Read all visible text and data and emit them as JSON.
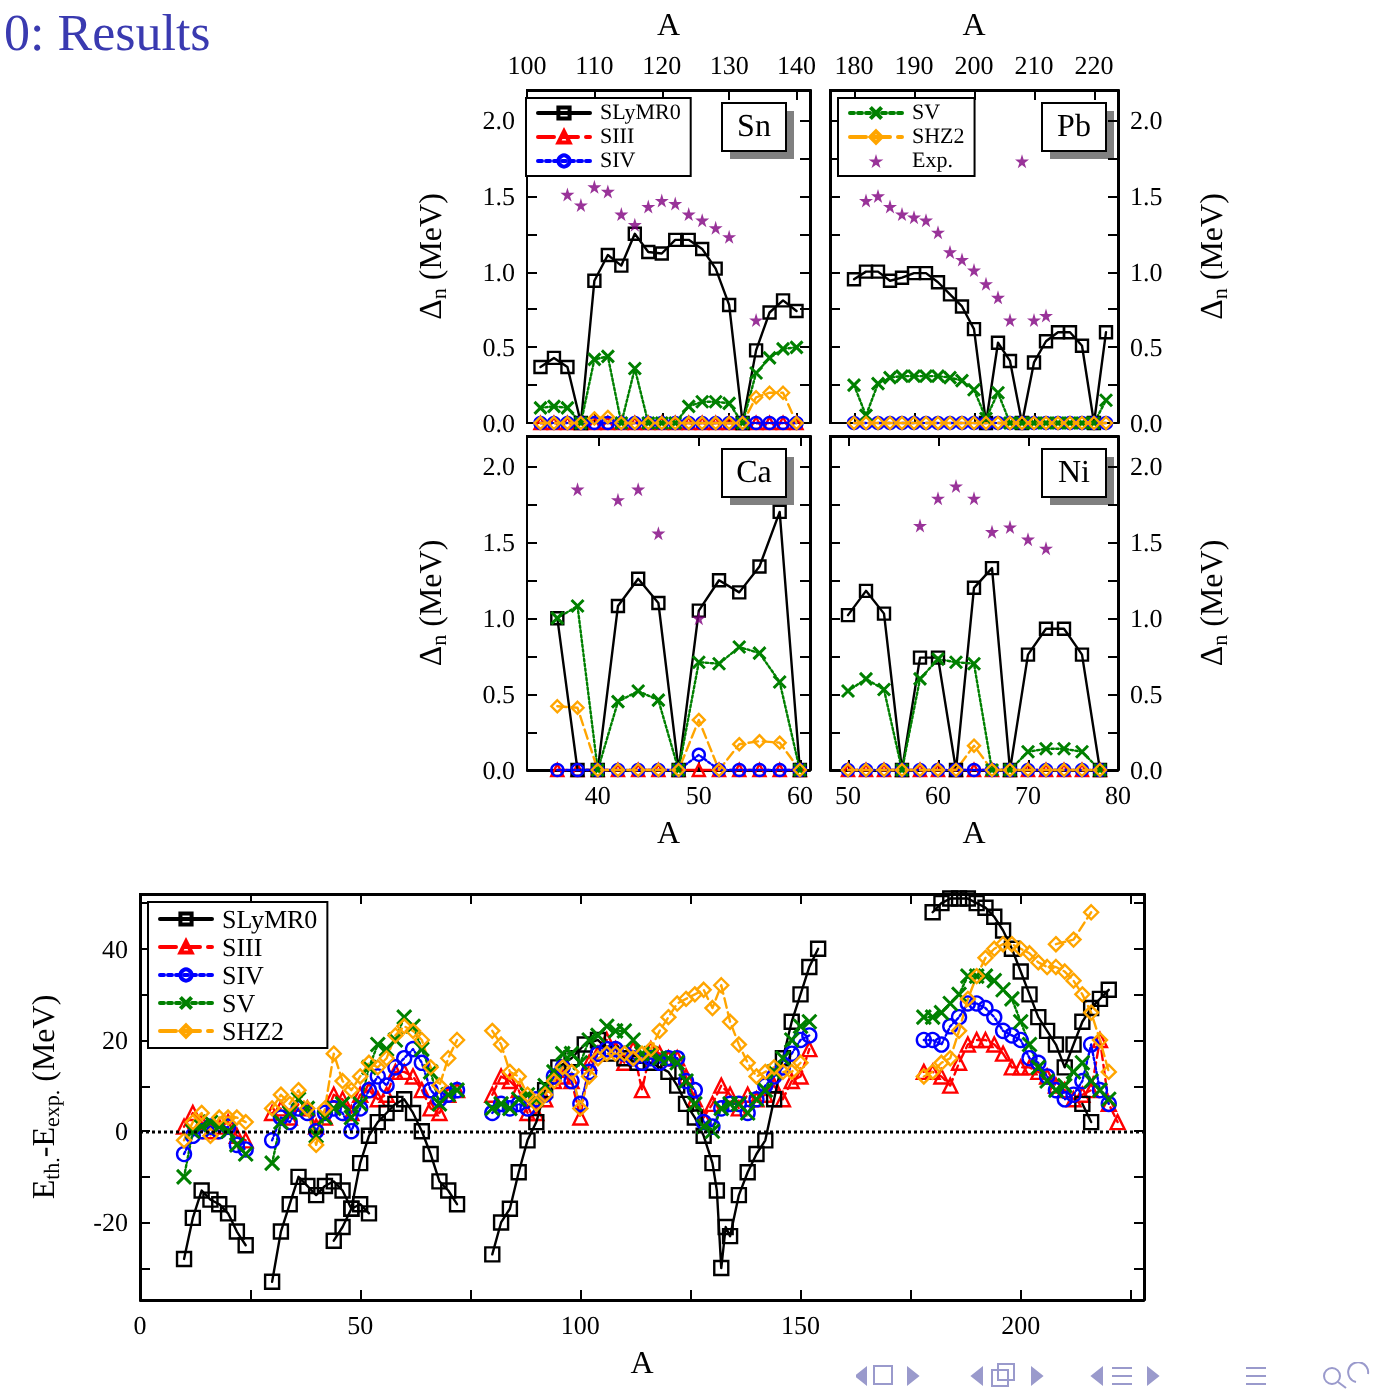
{
  "chart_data": [
    {
      "type": "line",
      "title": "0: Results",
      "xlabel": "A",
      "xlim": [
        100,
        142
      ],
      "xticks": [
        100,
        110,
        120,
        130,
        140
      ],
      "ylabel": "Δ$_{n}$ (MeV)",
      "ylim": [
        0,
        2.2
      ],
      "yticks": [
        {
          "value": 0,
          "label": "0.0"
        },
        {
          "value": 0.25,
          "label": null
        },
        0.5,
        {
          "value": 0.75,
          "label": null
        },
        {
          "value": 1,
          "label": "1.0"
        },
        {
          "value": 1.25,
          "label": null
        },
        1.5,
        {
          "value": 1.75,
          "label": null
        },
        {
          "value": 2,
          "label": "2.0"
        }
      ],
      "legend": "top left",
      "annotations": [
        "Sn"
      ],
      "x": [
        102,
        104,
        106,
        108,
        110,
        112,
        114,
        116,
        118,
        120,
        122,
        124,
        126,
        128,
        130,
        132,
        134,
        136,
        138,
        140
      ],
      "series": [
        {
          "name": "SLyMR0",
          "color": "#000000",
          "marker": "square",
          "line_style": "solid",
          "values": [
            0.37,
            0.43,
            0.37,
            0,
            0.94,
            1.11,
            1.04,
            1.25,
            1.13,
            1.12,
            1.21,
            1.21,
            1.15,
            1.02,
            0.78,
            0,
            0.48,
            0.73,
            0.81,
            0.74
          ]
        },
        {
          "name": "SIII",
          "color": "#ff0000",
          "marker": "triangle",
          "line_style": "dashed",
          "values": [
            0,
            0,
            0,
            0,
            0,
            0,
            0,
            0,
            0,
            0,
            0,
            0,
            0,
            0,
            0,
            0,
            0,
            0,
            0,
            0
          ]
        },
        {
          "name": "SIV",
          "color": "#0000ff",
          "marker": "circle",
          "line_style": "dotted",
          "values": [
            0,
            0,
            0,
            0,
            0,
            0,
            0,
            0,
            0,
            0,
            0,
            0,
            0,
            0,
            0,
            0,
            0,
            0,
            0,
            0
          ]
        },
        {
          "color": "#008000",
          "marker": "cross",
          "line_style": "dotted",
          "values": [
            0.1,
            0.11,
            0.1,
            0,
            0.42,
            0.44,
            0,
            0.36,
            0,
            0,
            0,
            0.11,
            0.14,
            0.14,
            0.13,
            0,
            0.33,
            0.43,
            0.49,
            0.5
          ]
        },
        {
          "color": "#ffa500",
          "marker": "diamond",
          "line_style": "dashed",
          "values": [
            0,
            0,
            0,
            0,
            0.03,
            0.04,
            0,
            0,
            0,
            0,
            0,
            0,
            0,
            0,
            0,
            0,
            0.17,
            0.2,
            0.2,
            0
          ]
        },
        {
          "type": "scatter",
          "color": "#800080",
          "marker": "star",
          "x": [
            106,
            108,
            110,
            112,
            114,
            116,
            118,
            120,
            122,
            124,
            126,
            128,
            130,
            134
          ],
          "values": [
            1.51,
            1.44,
            1.56,
            1.53,
            1.38,
            1.31,
            1.43,
            1.47,
            1.45,
            1.38,
            1.34,
            1.29,
            1.23,
            0.68
          ]
        }
      ]
    },
    {
      "type": "line",
      "xlabel": "A",
      "xlim": [
        176,
        224
      ],
      "xticks": [
        180,
        190,
        200,
        210,
        220
      ],
      "ylabel": "Δ$_{n}$ (MeV)",
      "ylim": [
        0,
        2.2
      ],
      "yticks": [
        {
          "value": 0,
          "label": "0.0"
        },
        {
          "value": 0.25,
          "label": null
        },
        0.5,
        {
          "value": 0.75,
          "label": null
        },
        {
          "value": 1,
          "label": "1.0"
        },
        {
          "value": 1.25,
          "label": null
        },
        1.5,
        {
          "value": 1.75,
          "label": null
        },
        {
          "value": 2,
          "label": "2.0"
        }
      ],
      "legend": "top left",
      "annotations": [
        "Pb"
      ],
      "x": [
        180,
        182,
        184,
        186,
        188,
        190,
        192,
        194,
        196,
        198,
        200,
        202,
        204,
        206,
        208,
        210,
        212,
        214,
        216,
        218,
        220,
        222
      ],
      "series": [
        {
          "color": "#000000",
          "marker": "square",
          "line_style": "solid",
          "values": [
            0.95,
            1.0,
            1.0,
            0.94,
            0.96,
            0.99,
            0.99,
            0.93,
            0.85,
            0.77,
            0.62,
            0,
            0.53,
            0.41,
            0,
            0.4,
            0.54,
            0.6,
            0.6,
            0.51,
            0,
            0.6
          ]
        },
        {
          "color": "#ff0000",
          "marker": "triangle",
          "line_style": "dashed",
          "values": [
            null,
            null,
            null,
            null,
            null,
            null,
            null,
            null,
            null,
            null,
            null,
            null,
            null,
            null,
            null,
            null,
            null,
            null,
            null,
            null,
            null,
            null
          ]
        },
        {
          "color": "#0000ff",
          "marker": "circle",
          "line_style": "dotted",
          "values": [
            0,
            0,
            0,
            0,
            0,
            0,
            0,
            0,
            0,
            0,
            0,
            0,
            0,
            0,
            0,
            0,
            0,
            0,
            0,
            0,
            0,
            0
          ]
        },
        {
          "name": "SV",
          "color": "#008000",
          "marker": "cross",
          "line_style": "dotted",
          "values": [
            0.25,
            0.05,
            0.26,
            0.3,
            0.31,
            0.31,
            0.31,
            0.31,
            0.3,
            0.28,
            0.22,
            0.03,
            0.2,
            0,
            0,
            0,
            0,
            0,
            0,
            0,
            0,
            0.15
          ]
        },
        {
          "name": "SHZ2",
          "color": "#ffa500",
          "marker": "diamond",
          "line_style": "dashed",
          "values": [
            0,
            0,
            0,
            0,
            0,
            0,
            0,
            0,
            0,
            0,
            0,
            0,
            0,
            0,
            0,
            0,
            0,
            0,
            0,
            0,
            0,
            0
          ]
        },
        {
          "name": "Exp.",
          "type": "scatter",
          "color": "#800080",
          "marker": "star",
          "x": [
            182,
            184,
            186,
            188,
            190,
            192,
            194,
            196,
            198,
            200,
            202,
            204,
            206,
            208,
            210,
            212
          ],
          "values": [
            1.47,
            1.5,
            1.43,
            1.38,
            1.36,
            1.34,
            1.26,
            1.13,
            1.08,
            1.01,
            0.92,
            0.83,
            0.68,
            1.73,
            0.68,
            0.71
          ]
        }
      ]
    },
    {
      "type": "line",
      "xlabel": "A",
      "xlim": [
        33,
        61
      ],
      "xticks": [
        40,
        50,
        60
      ],
      "ylabel": "Δ$_{n}$ (MeV)",
      "ylim": [
        0,
        2.2
      ],
      "yticks": [
        {
          "value": 0,
          "label": "0.0"
        },
        {
          "value": 0.25,
          "label": null
        },
        0.5,
        {
          "value": 0.75,
          "label": null
        },
        {
          "value": 1,
          "label": "1.0"
        },
        {
          "value": 1.25,
          "label": null
        },
        1.5,
        {
          "value": 1.75,
          "label": null
        },
        {
          "value": 2,
          "label": "2.0"
        }
      ],
      "annotations": [
        "Ca"
      ],
      "x": [
        36,
        38,
        40,
        42,
        44,
        46,
        48,
        50,
        52,
        54,
        56,
        58,
        60
      ],
      "series": [
        {
          "color": "#000000",
          "marker": "square",
          "line_style": "solid",
          "values": [
            1.0,
            0,
            0,
            1.08,
            1.26,
            1.1,
            0,
            1.05,
            1.25,
            1.17,
            1.34,
            1.7,
            0
          ]
        },
        {
          "color": "#ff0000",
          "marker": "triangle",
          "line_style": "dashed",
          "values": [
            0,
            0,
            0,
            0,
            0,
            0,
            0,
            0,
            0,
            0,
            0,
            0,
            0
          ]
        },
        {
          "color": "#0000ff",
          "marker": "circle",
          "line_style": "dotted",
          "values": [
            0,
            0,
            0,
            0,
            0,
            0,
            0,
            0.1,
            0,
            0,
            0,
            0,
            0
          ]
        },
        {
          "color": "#008000",
          "marker": "cross",
          "line_style": "dotted",
          "values": [
            1.0,
            1.08,
            0,
            0.45,
            0.52,
            0.46,
            0,
            0.71,
            0.7,
            0.81,
            0.77,
            0.58,
            0
          ]
        },
        {
          "color": "#ffa500",
          "marker": "diamond",
          "line_style": "dashed",
          "values": [
            0.42,
            0.41,
            0,
            0,
            0,
            0,
            0,
            0.33,
            0,
            0.17,
            0.19,
            0.18,
            0
          ]
        },
        {
          "type": "scatter",
          "color": "#800080",
          "marker": "star",
          "x": [
            38,
            42,
            44,
            46,
            50
          ],
          "values": [
            1.85,
            1.78,
            1.85,
            1.56,
            1.0
          ]
        }
      ]
    },
    {
      "type": "line",
      "xlabel": "A",
      "xlim": [
        48,
        80
      ],
      "xticks": [
        50,
        60,
        70,
        80
      ],
      "ylabel": "Δ$_{n}$ (MeV)",
      "ylim": [
        0,
        2.2
      ],
      "yticks": [
        {
          "value": 0,
          "label": "0.0"
        },
        {
          "value": 0.25,
          "label": null
        },
        0.5,
        {
          "value": 0.75,
          "label": null
        },
        {
          "value": 1,
          "label": "1.0"
        },
        {
          "value": 1.25,
          "label": null
        },
        1.5,
        {
          "value": 1.75,
          "label": null
        },
        {
          "value": 2,
          "label": "2.0"
        }
      ],
      "annotations": [
        "Ni"
      ],
      "x": [
        50,
        52,
        54,
        56,
        58,
        60,
        62,
        64,
        66,
        68,
        70,
        72,
        74,
        76,
        78
      ],
      "series": [
        {
          "color": "#000000",
          "marker": "square",
          "line_style": "solid",
          "values": [
            1.02,
            1.18,
            1.03,
            0,
            0.74,
            0.74,
            0,
            1.2,
            1.33,
            0,
            0.76,
            0.93,
            0.93,
            0.76,
            0
          ]
        },
        {
          "color": "#ff0000",
          "marker": "triangle",
          "line_style": "dashed",
          "values": [
            0,
            0,
            0,
            0,
            0,
            0,
            0,
            0,
            0,
            0,
            0,
            0,
            0,
            0,
            0
          ]
        },
        {
          "color": "#0000ff",
          "marker": "circle",
          "line_style": "dotted",
          "values": [
            0,
            0,
            0,
            0,
            0,
            0,
            0,
            0,
            0,
            0,
            0,
            0,
            0,
            0,
            0
          ]
        },
        {
          "color": "#008000",
          "marker": "cross",
          "line_style": "dotted",
          "values": [
            0.52,
            0.6,
            0.53,
            0,
            0.6,
            0.73,
            0.71,
            0.7,
            0,
            0,
            0.12,
            0.14,
            0.14,
            0.12,
            0
          ]
        },
        {
          "color": "#ffa500",
          "marker": "diamond",
          "line_style": "dashed",
          "values": [
            0,
            0,
            0,
            0,
            0,
            0,
            0,
            0.16,
            0,
            0,
            0,
            0,
            0,
            0,
            0
          ]
        },
        {
          "type": "scatter",
          "color": "#800080",
          "marker": "star",
          "x": [
            58,
            60,
            62,
            64,
            66,
            68,
            70,
            72
          ],
          "values": [
            1.61,
            1.79,
            1.87,
            1.79,
            1.57,
            1.6,
            1.52,
            1.46
          ]
        }
      ]
    },
    {
      "type": "line",
      "xlabel": "A",
      "xlim": [
        0,
        228
      ],
      "xticks": [
        0,
        {
          "value": 25,
          "label": null
        },
        50,
        {
          "value": 75,
          "label": null
        },
        100,
        {
          "value": 125,
          "label": null
        },
        150,
        {
          "value": 175,
          "label": null
        },
        200,
        {
          "value": 225,
          "label": null
        }
      ],
      "ylabel": "E$_{th.}$-E$_{exp.}$ (MeV)",
      "ylim": [
        -37,
        52
      ],
      "yticks": [
        {
          "value": -30,
          "label": null
        },
        -20,
        {
          "value": -10,
          "label": null
        },
        0,
        {
          "value": 10,
          "label": null
        },
        20,
        {
          "value": 30,
          "label": null
        },
        40,
        {
          "value": 50,
          "label": null
        }
      ],
      "legend": "top left",
      "ref_lines": [
        {
          "axis": "y",
          "value": 0,
          "color": "#000000",
          "line_style": "dotted"
        }
      ],
      "series": [
        {
          "name": "SLyMR0",
          "color": "#000000",
          "marker": "square",
          "line_style": "solid",
          "x": [
            10,
            12,
            14,
            16,
            18,
            20,
            22,
            24,
            27,
            30,
            32,
            34,
            36,
            38,
            40,
            42,
            44,
            46,
            48,
            50,
            52,
            48,
            44,
            46,
            48,
            50,
            52,
            54,
            56,
            58,
            60,
            62,
            64,
            66,
            68,
            70,
            72,
            76,
            80,
            82,
            84,
            86,
            88,
            90,
            92,
            95,
            98,
            101,
            104,
            107,
            110,
            113,
            116,
            120,
            122,
            124,
            126,
            128,
            130,
            131,
            132,
            133,
            134,
            136,
            138,
            140,
            142,
            144,
            146,
            148,
            150,
            152,
            154,
            166,
            180,
            182,
            184,
            186,
            188,
            190,
            192,
            194,
            196,
            198,
            200,
            202,
            204,
            206,
            208,
            210,
            212,
            214,
            216,
            218,
            220,
            217,
            214,
            216
          ],
          "values": [
            -28,
            -19,
            -13,
            -15,
            -16,
            -18,
            -22,
            -25,
            null,
            -33,
            -22,
            -16,
            -10,
            -12,
            -14,
            -12,
            -11,
            -13,
            -17,
            -16,
            -18,
            null,
            -24,
            -21,
            -17,
            -7,
            -1,
            2,
            4,
            6,
            7,
            4,
            0,
            -5,
            -11,
            -13,
            -16,
            null,
            -27,
            -20,
            -17,
            -9,
            -2,
            2,
            9,
            14,
            16,
            19,
            20,
            17,
            16,
            15,
            15,
            13,
            10,
            6,
            3,
            -1,
            -7,
            -13,
            -30,
            -21,
            -23,
            -14,
            -9,
            -5,
            -2,
            7,
            16,
            24,
            30,
            36,
            40,
            null,
            48,
            50,
            51,
            51,
            51,
            50,
            49,
            47,
            44,
            40,
            35,
            30,
            25,
            22,
            19,
            14,
            19,
            24,
            27,
            29,
            31,
            null,
            6,
            2
          ]
        },
        {
          "name": "SIII",
          "color": "#ff0000",
          "marker": "triangle",
          "line_style": "dashed",
          "x": [
            10,
            12,
            14,
            16,
            18,
            20,
            22,
            24,
            27,
            30,
            32,
            34,
            36,
            38,
            40,
            42,
            44,
            46,
            48,
            50,
            52,
            54,
            56,
            58,
            60,
            62,
            64,
            66,
            68,
            70,
            72,
            76,
            80,
            82,
            84,
            86,
            88,
            90,
            92,
            94,
            96,
            98,
            100,
            102,
            104,
            106,
            108,
            110,
            112,
            114,
            116,
            118,
            120,
            122,
            124,
            126,
            128,
            130,
            132,
            134,
            136,
            138,
            140,
            142,
            144,
            146,
            148,
            150,
            152,
            166,
            178,
            180,
            182,
            184,
            186,
            188,
            190,
            192,
            194,
            196,
            198,
            200,
            202,
            204,
            206,
            208,
            210,
            212,
            214,
            216,
            218,
            220,
            222
          ],
          "values": [
            1,
            4,
            2,
            0,
            1,
            2,
            -1,
            -2,
            null,
            4,
            5,
            3,
            6,
            5,
            1,
            3,
            8,
            7,
            4,
            8,
            9,
            7,
            8,
            13,
            13,
            12,
            9,
            5,
            4,
            8,
            9,
            null,
            8,
            12,
            11,
            9,
            4,
            4,
            7,
            11,
            12,
            11,
            3,
            15,
            17,
            20,
            18,
            15,
            18,
            9,
            18,
            17,
            16,
            16,
            12,
            7,
            3,
            6,
            10,
            8,
            5,
            8,
            7,
            8,
            10,
            7,
            11,
            12,
            18,
            null,
            13,
            13,
            12,
            10,
            15,
            19,
            20,
            20,
            19,
            17,
            14,
            14,
            14,
            13,
            12,
            10,
            9,
            7,
            8,
            9,
            20,
            6,
            2
          ]
        },
        {
          "name": "SIV",
          "color": "#0000ff",
          "marker": "circle",
          "line_style": "dotted",
          "x": [
            10,
            12,
            14,
            16,
            18,
            20,
            22,
            24,
            27,
            30,
            32,
            34,
            36,
            38,
            40,
            42,
            44,
            46,
            48,
            50,
            52,
            54,
            56,
            58,
            60,
            62,
            64,
            66,
            68,
            70,
            72,
            76,
            80,
            82,
            84,
            86,
            88,
            90,
            92,
            94,
            96,
            98,
            100,
            102,
            104,
            106,
            108,
            110,
            112,
            114,
            116,
            118,
            120,
            122,
            124,
            126,
            128,
            130,
            132,
            134,
            136,
            138,
            140,
            142,
            144,
            146,
            148,
            150,
            152,
            166,
            178,
            180,
            182,
            184,
            186,
            188,
            190,
            192,
            194,
            196,
            198,
            200,
            202,
            204,
            206,
            208,
            210,
            212,
            214,
            216,
            218,
            220
          ],
          "values": [
            -5,
            -1,
            0,
            1,
            0,
            1,
            -3,
            -4,
            null,
            -2,
            3,
            2,
            5,
            4,
            0,
            4,
            5,
            4,
            0,
            5,
            9,
            12,
            10,
            14,
            16,
            18,
            15,
            9,
            7,
            8,
            9,
            null,
            4,
            6,
            5,
            6,
            5,
            7,
            8,
            12,
            14,
            11,
            6,
            13,
            17,
            18,
            18,
            17,
            16,
            15,
            16,
            15,
            16,
            16,
            11,
            9,
            2,
            1,
            5,
            6,
            6,
            4,
            7,
            10,
            12,
            14,
            17,
            20,
            21,
            null,
            20,
            20,
            19,
            23,
            25,
            28,
            28,
            27,
            25,
            22,
            21,
            20,
            16,
            15,
            12,
            9,
            7,
            8,
            11,
            19,
            9,
            6
          ]
        },
        {
          "name": "SV",
          "color": "#008000",
          "marker": "cross",
          "line_style": "dotted",
          "x": [
            10,
            12,
            14,
            16,
            18,
            20,
            22,
            24,
            27,
            30,
            32,
            34,
            36,
            38,
            40,
            42,
            44,
            46,
            48,
            50,
            52,
            54,
            56,
            58,
            60,
            62,
            64,
            66,
            68,
            70,
            72,
            76,
            80,
            82,
            84,
            86,
            88,
            90,
            92,
            94,
            96,
            98,
            100,
            102,
            104,
            106,
            108,
            110,
            112,
            114,
            116,
            118,
            120,
            122,
            124,
            126,
            128,
            130,
            132,
            134,
            136,
            138,
            140,
            142,
            144,
            146,
            148,
            150,
            152,
            166,
            178,
            180,
            182,
            184,
            186,
            188,
            190,
            192,
            194,
            196,
            198,
            200,
            202,
            204,
            206,
            208,
            210,
            212,
            214,
            216,
            218,
            220
          ],
          "values": [
            -10,
            0,
            1,
            2,
            1,
            0,
            -3,
            -5,
            null,
            -7,
            2,
            4,
            7,
            5,
            -1,
            3,
            5,
            6,
            3,
            6,
            14,
            19,
            18,
            20,
            25,
            23,
            18,
            13,
            6,
            8,
            9,
            null,
            5,
            6,
            5,
            7,
            8,
            7,
            10,
            13,
            17,
            17,
            15,
            20,
            21,
            23,
            22,
            22,
            20,
            17,
            17,
            16,
            16,
            15,
            11,
            6,
            1,
            0,
            5,
            6,
            6,
            4,
            7,
            9,
            13,
            16,
            20,
            23,
            24,
            null,
            25,
            25,
            26,
            28,
            30,
            34,
            34,
            34,
            33,
            31,
            29,
            24,
            19,
            14,
            11,
            9,
            10,
            13,
            15,
            11,
            9,
            7
          ]
        },
        {
          "name": "SHZ2",
          "color": "#ffa500",
          "marker": "diamond",
          "line_style": "dashed",
          "x": [
            10,
            12,
            14,
            16,
            18,
            20,
            22,
            24,
            27,
            30,
            32,
            34,
            36,
            38,
            40,
            42,
            44,
            46,
            48,
            50,
            52,
            54,
            56,
            58,
            60,
            62,
            64,
            66,
            68,
            70,
            72,
            76,
            80,
            82,
            84,
            86,
            88,
            90,
            92,
            94,
            96,
            98,
            100,
            102,
            104,
            106,
            108,
            110,
            112,
            114,
            116,
            118,
            120,
            122,
            124,
            126,
            128,
            130,
            132,
            134,
            136,
            138,
            140,
            142,
            144,
            146,
            148,
            150,
            166,
            178,
            180,
            182,
            184,
            186,
            188,
            190,
            192,
            194,
            196,
            198,
            200,
            202,
            204,
            206,
            208,
            210,
            212,
            214,
            216,
            218,
            220,
            214,
            208,
            212,
            216
          ],
          "values": [
            -2,
            2,
            4,
            -1,
            3,
            3,
            3,
            2,
            null,
            5,
            8,
            6,
            9,
            5,
            -3,
            5,
            17,
            11,
            9,
            12,
            15,
            14,
            16,
            21,
            23,
            22,
            20,
            14,
            10,
            16,
            20,
            null,
            22,
            19,
            13,
            12,
            8,
            6,
            8,
            11,
            14,
            13,
            5,
            12,
            16,
            17,
            17,
            17,
            16,
            17,
            18,
            22,
            25,
            28,
            29,
            30,
            31,
            27,
            32,
            24,
            19,
            15,
            12,
            13,
            14,
            13,
            13,
            15,
            null,
            12,
            13,
            15,
            16,
            22,
            29,
            34,
            38,
            40,
            41,
            41,
            40,
            39,
            37,
            36,
            36,
            35,
            33,
            30,
            26,
            20,
            13,
            null,
            41,
            42,
            48
          ]
        }
      ]
    }
  ]
}
